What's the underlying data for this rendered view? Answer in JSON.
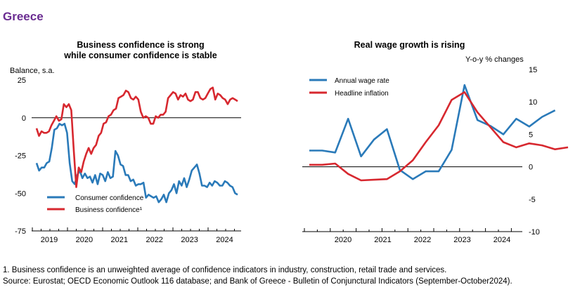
{
  "page_title": "Greece",
  "chart_data": [
    {
      "type": "line",
      "title_line1": "Business confidence is strong",
      "title_line2": "while consumer confidence is stable",
      "ylabel": "Balance, s.a.",
      "ylim": [
        -75,
        25
      ],
      "yticks": [
        "25",
        "0",
        "-25",
        "-50",
        "-75"
      ],
      "xticks": [
        "2019",
        "2020",
        "2021",
        "2022",
        "2023",
        "2024"
      ],
      "series": [
        {
          "name": "Consumer confidence",
          "color": "#2a7ab9",
          "values": [
            -30,
            -35,
            -33,
            -33,
            -30,
            -29,
            -20,
            -8,
            -7,
            -4,
            -5,
            -4,
            -10,
            -30,
            -42,
            -44,
            -38,
            -35,
            -40,
            -37,
            -40,
            -39,
            -43,
            -38,
            -44,
            -37,
            -38,
            -42,
            -36,
            -40,
            -39,
            -22,
            -25,
            -31,
            -32,
            -38,
            -38,
            -42,
            -41,
            -45,
            -44,
            -44,
            -43,
            -53,
            -51,
            -52,
            -53,
            -52,
            -56,
            -54,
            -51,
            -56,
            -50,
            -48,
            -44,
            -50,
            -42,
            -45,
            -40,
            -46,
            -41,
            -35,
            -33,
            -31,
            -37,
            -45,
            -45,
            -46,
            -43,
            -45,
            -42,
            -43,
            -45,
            -45,
            -42,
            -43,
            -45,
            -46,
            -50,
            -51
          ]
        },
        {
          "name": "Business confidence¹",
          "color": "#d7282f",
          "values": [
            -7,
            -12,
            -9,
            -10,
            -10,
            -9,
            -5,
            -2,
            1,
            -2,
            -1,
            9,
            7,
            9,
            5,
            -22,
            -46,
            -33,
            -36,
            -29,
            -24,
            -20,
            -24,
            -20,
            -18,
            -12,
            -10,
            -4,
            -3,
            1,
            2,
            5,
            6,
            13,
            14,
            15,
            18,
            17,
            13,
            12,
            14,
            12,
            4,
            0,
            1,
            0,
            -4,
            -4,
            1,
            0,
            2,
            2,
            4,
            13,
            15,
            17,
            16,
            12,
            15,
            14,
            16,
            12,
            11,
            12,
            17,
            17,
            13,
            12,
            13,
            16,
            19,
            20,
            12,
            16,
            15,
            13,
            12,
            9,
            12,
            13,
            12,
            11
          ]
        }
      ],
      "legend": [
        "Consumer confidence",
        "Business confidence¹"
      ]
    },
    {
      "type": "line",
      "title": "Real wage growth is rising",
      "ylabel": "Y-o-y % changes",
      "ylim": [
        -10,
        15
      ],
      "yticks": [
        "15",
        "10",
        "5",
        "0",
        "-5",
        "-10"
      ],
      "xticks": [
        "2020",
        "2021",
        "2022",
        "2023",
        "2024"
      ],
      "series": [
        {
          "name": "Annual wage rate",
          "color": "#2a7ab9",
          "values": [
            2.5,
            2.5,
            2.2,
            7.4,
            1.6,
            4.2,
            5.8,
            -0.5,
            -1.9,
            -0.7,
            -0.7,
            2.6,
            12.6,
            7.2,
            6.3,
            5.0,
            7.4,
            6.2,
            7.7,
            8.7
          ]
        },
        {
          "name": "Headline inflation",
          "color": "#d7282f",
          "values": [
            0.3,
            0.3,
            0.5,
            -1.1,
            -2.1,
            -2.0,
            -1.9,
            -0.7,
            1.0,
            3.8,
            6.4,
            10.3,
            11.5,
            8.4,
            6.1,
            3.8,
            3.0,
            3.6,
            3.3,
            2.7,
            3.0
          ]
        }
      ],
      "legend": [
        "Annual wage rate",
        "Headline inflation"
      ]
    }
  ],
  "notes": {
    "footnote": "1. Business confidence is an unweighted average of confidence indicators in industry, construction, retail trade and services.",
    "source": "Source: Eurostat; OECD Economic Outlook 116 database; and Bank of Greece - Bulletin of Conjunctural Indicators (September-October2024)."
  }
}
